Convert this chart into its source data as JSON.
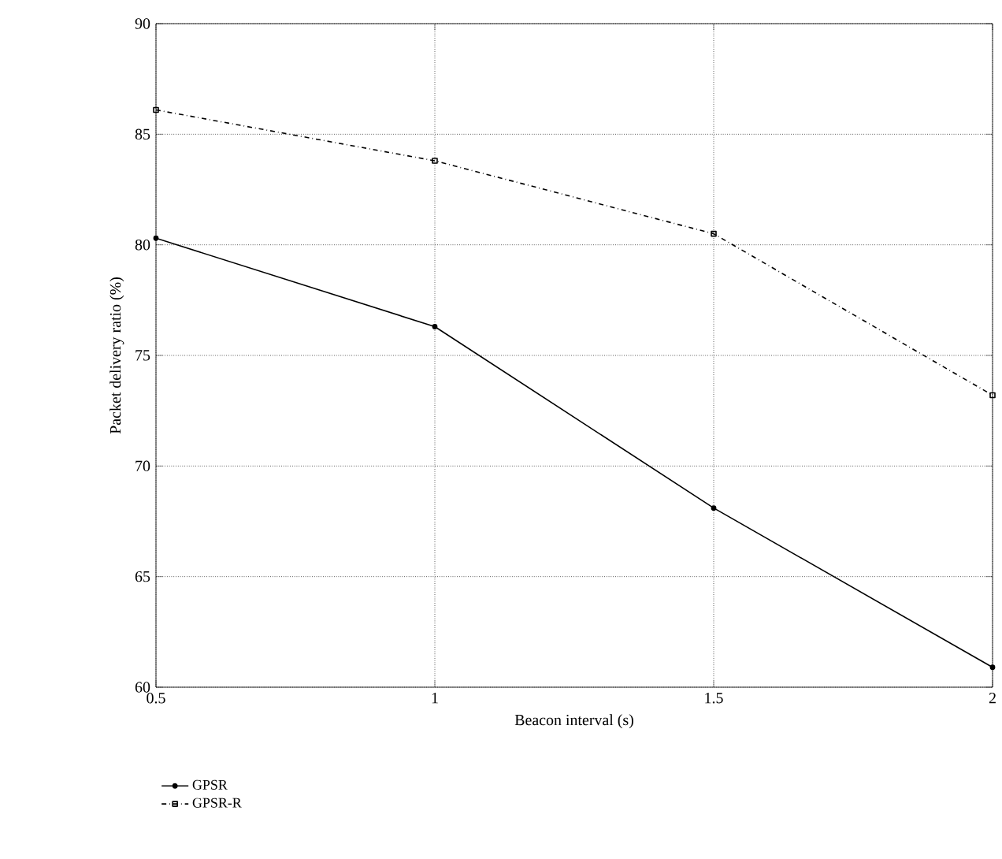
{
  "chart_data": {
    "type": "line",
    "xlabel": "Beacon interval (s)",
    "ylabel": "Packet delivery ratio (%)",
    "x": [
      0.5,
      1,
      1.5,
      2
    ],
    "series": [
      {
        "name": "GPSR",
        "color": "#000000",
        "values": [
          80.3,
          76.3,
          68.1,
          60.9
        ],
        "marker": "circle",
        "line_style": "solid"
      },
      {
        "name": "GPSR-R",
        "color": "#000000",
        "values": [
          86.1,
          83.8,
          80.5,
          73.2
        ],
        "marker": "square",
        "line_style": "dashdot"
      }
    ],
    "xlim": [
      0.5,
      2
    ],
    "xticks": [
      0.5,
      1,
      1.5,
      2
    ],
    "ylim": [
      60,
      90
    ],
    "yticks": [
      60,
      65,
      70,
      75,
      80,
      85,
      90
    ],
    "grid": true,
    "legend": "bottom left"
  }
}
